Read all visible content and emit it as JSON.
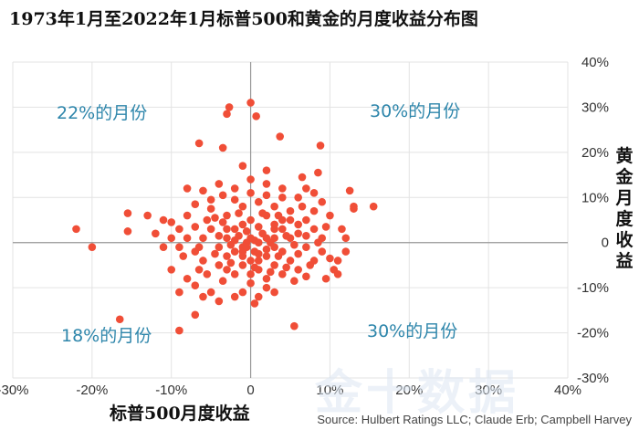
{
  "chart_data": {
    "type": "scatter",
    "title": "1973年1月至2022年1月标普500和黄金的月度收益分布图",
    "xlabel": "标普500月度收益",
    "ylabel": "黄金月度收益",
    "xlim": [
      -30,
      40
    ],
    "ylim": [
      -30,
      40
    ],
    "x_ticks": [
      "-30%",
      "-20%",
      "-10%",
      "0",
      "10%",
      "20%",
      "30%",
      "40%"
    ],
    "y_ticks": [
      "-30%",
      "-20%",
      "-10%",
      "0",
      "10%",
      "20%",
      "30%",
      "40%"
    ],
    "grid": true,
    "point_color": "#f04e37",
    "annotations": {
      "top_left": "22%的月份",
      "top_right": "30%的月份",
      "bottom_left": "18%的月份",
      "bottom_right": "30%的月份"
    },
    "points": [
      [
        0.0,
        31.0
      ],
      [
        -3.0,
        28.5
      ],
      [
        -2.7,
        30.0
      ],
      [
        0.7,
        28.0
      ],
      [
        3.7,
        23.5
      ],
      [
        -3.5,
        21.0
      ],
      [
        8.8,
        21.5
      ],
      [
        8.5,
        15.5
      ],
      [
        -6.5,
        22.0
      ],
      [
        -1.0,
        17.0
      ],
      [
        2.0,
        16.0
      ],
      [
        6.5,
        14.5
      ],
      [
        -8.0,
        12.0
      ],
      [
        -6.0,
        11.5
      ],
      [
        -4.0,
        13.0
      ],
      [
        12.5,
        11.5
      ],
      [
        13.0,
        8.0
      ],
      [
        15.5,
        8.0
      ],
      [
        13.0,
        7.5
      ],
      [
        -22.0,
        3.0
      ],
      [
        -20.0,
        -1.0
      ],
      [
        -15.5,
        2.5
      ],
      [
        -15.5,
        6.5
      ],
      [
        -13.0,
        6.0
      ],
      [
        -11.0,
        5.0
      ],
      [
        -12.0,
        2.0
      ],
      [
        -10.0,
        4.5
      ],
      [
        -10.0,
        1.0
      ],
      [
        -11.0,
        -1.0
      ],
      [
        -9.0,
        -1.0
      ],
      [
        -8.5,
        -3.0
      ],
      [
        -10.0,
        -6.0
      ],
      [
        -8.0,
        -8.0
      ],
      [
        -9.0,
        -11.0
      ],
      [
        -7.0,
        -9.5
      ],
      [
        -6.0,
        -12.0
      ],
      [
        -5.0,
        -11.0
      ],
      [
        -4.0,
        -13.0
      ],
      [
        -2.0,
        -12.0
      ],
      [
        -1.0,
        -11.0
      ],
      [
        0.5,
        -13.5
      ],
      [
        1.0,
        -12.0
      ],
      [
        2.0,
        -10.0
      ],
      [
        3.0,
        -11.0
      ],
      [
        -16.5,
        -17.0
      ],
      [
        -9.0,
        -19.5
      ],
      [
        -7.0,
        -16.0
      ],
      [
        5.5,
        -18.5
      ],
      [
        11.5,
        3.0
      ],
      [
        12.0,
        1.0
      ],
      [
        12.0,
        -2.0
      ],
      [
        11.0,
        -4.0
      ],
      [
        10.5,
        -6.0
      ],
      [
        11.0,
        -7.0
      ],
      [
        9.5,
        -8.0
      ],
      [
        10.0,
        6.0
      ],
      [
        9.0,
        9.0
      ],
      [
        8.0,
        11.0
      ],
      [
        7.0,
        12.0
      ],
      [
        6.0,
        10.0
      ],
      [
        4.0,
        12.0
      ],
      [
        2.0,
        13.0
      ],
      [
        0.0,
        14.0
      ],
      [
        -2.0,
        12.0
      ],
      [
        -3.5,
        10.5
      ],
      [
        -5.0,
        9.5
      ],
      [
        -7.0,
        8.5
      ],
      [
        -4.5,
        5.5
      ],
      [
        -3.0,
        3.0
      ],
      [
        -2.0,
        0.5
      ],
      [
        -1.0,
        -2.0
      ],
      [
        0.0,
        -4.0
      ],
      [
        1.0,
        -6.0
      ],
      [
        2.0,
        -3.0
      ],
      [
        3.0,
        1.0
      ],
      [
        4.0,
        3.0
      ],
      [
        5.0,
        5.0
      ],
      [
        6.0,
        2.0
      ],
      [
        7.0,
        -1.0
      ],
      [
        8.0,
        -4.0
      ],
      [
        6.0,
        -6.0
      ],
      [
        4.0,
        -7.0
      ],
      [
        2.0,
        -8.0
      ],
      [
        0.0,
        -9.0
      ],
      [
        -2.0,
        -7.0
      ],
      [
        -4.0,
        -5.0
      ],
      [
        -6.0,
        -4.0
      ],
      [
        -7.0,
        -2.0
      ],
      [
        -6.0,
        1.0
      ],
      [
        -5.0,
        3.0
      ],
      [
        -3.0,
        6.0
      ],
      [
        -1.0,
        8.0
      ],
      [
        1.0,
        9.0
      ],
      [
        3.0,
        8.0
      ],
      [
        5.0,
        7.0
      ],
      [
        7.0,
        5.0
      ],
      [
        8.0,
        3.0
      ],
      [
        9.0,
        1.0
      ],
      [
        9.0,
        -2.0
      ],
      [
        7.5,
        -5.0
      ],
      [
        5.0,
        -4.0
      ],
      [
        3.0,
        -5.0
      ],
      [
        1.0,
        -4.0
      ],
      [
        -1.0,
        -5.0
      ],
      [
        -3.0,
        -3.0
      ],
      [
        -4.0,
        -1.0
      ],
      [
        -4.0,
        1.5
      ],
      [
        -2.0,
        3.0
      ],
      [
        0.0,
        5.0
      ],
      [
        2.0,
        6.0
      ],
      [
        4.0,
        5.0
      ],
      [
        6.0,
        4.0
      ],
      [
        5.0,
        1.0
      ],
      [
        3.0,
        -1.0
      ],
      [
        1.0,
        -2.5
      ],
      [
        -1.0,
        -1.0
      ],
      [
        0.0,
        1.0
      ],
      [
        1.5,
        2.0
      ],
      [
        2.5,
        0.0
      ],
      [
        -0.5,
        2.5
      ],
      [
        -1.5,
        1.5
      ],
      [
        -2.5,
        -0.5
      ],
      [
        -1.0,
        4.0
      ],
      [
        1.0,
        3.5
      ],
      [
        3.0,
        3.0
      ],
      [
        4.5,
        1.5
      ],
      [
        4.0,
        -2.0
      ],
      [
        2.0,
        -1.5
      ],
      [
        0.5,
        -2.0
      ],
      [
        -0.5,
        0.0
      ],
      [
        0.5,
        0.5
      ],
      [
        -1.0,
        -3.0
      ],
      [
        -3.0,
        1.0
      ],
      [
        -2.0,
        -2.0
      ],
      [
        2.0,
        1.0
      ],
      [
        1.0,
        0.0
      ],
      [
        -0.5,
        -1.0
      ],
      [
        3.5,
        -3.0
      ],
      [
        -5.5,
        -7.0
      ],
      [
        -3.5,
        -8.5
      ],
      [
        5.5,
        -8.5
      ],
      [
        7.0,
        -7.5
      ],
      [
        6.5,
        8.0
      ],
      [
        -8.0,
        6.0
      ],
      [
        -9.0,
        3.0
      ],
      [
        -7.0,
        3.5
      ],
      [
        9.5,
        3.5
      ],
      [
        10.0,
        -3.5
      ],
      [
        -5.0,
        7.5
      ],
      [
        4.0,
        10.0
      ],
      [
        0.0,
        11.0
      ],
      [
        -2.0,
        9.5
      ],
      [
        2.0,
        10.5
      ],
      [
        8.0,
        7.0
      ],
      [
        -6.5,
        -6.0
      ],
      [
        6.0,
        -2.5
      ],
      [
        -4.5,
        -2.5
      ],
      [
        -3.0,
        -6.0
      ],
      [
        0.0,
        -7.0
      ],
      [
        2.5,
        -6.5
      ],
      [
        4.5,
        -5.5
      ],
      [
        1.5,
        6.5
      ],
      [
        -1.5,
        6.5
      ],
      [
        3.5,
        6.0
      ],
      [
        -3.5,
        4.5
      ],
      [
        -5.5,
        5.0
      ],
      [
        -6.5,
        -1.0
      ],
      [
        -8.0,
        1.0
      ],
      [
        7.0,
        1.5
      ],
      [
        8.5,
        0.0
      ],
      [
        5.5,
        -0.5
      ],
      [
        -2.5,
        -4.5
      ],
      [
        0.5,
        -5.5
      ],
      [
        3.0,
        4.0
      ]
    ]
  },
  "source": "Source: Hulbert Ratings LLC; Claude Erb; Campbell Harvey",
  "watermark": "金十数据"
}
